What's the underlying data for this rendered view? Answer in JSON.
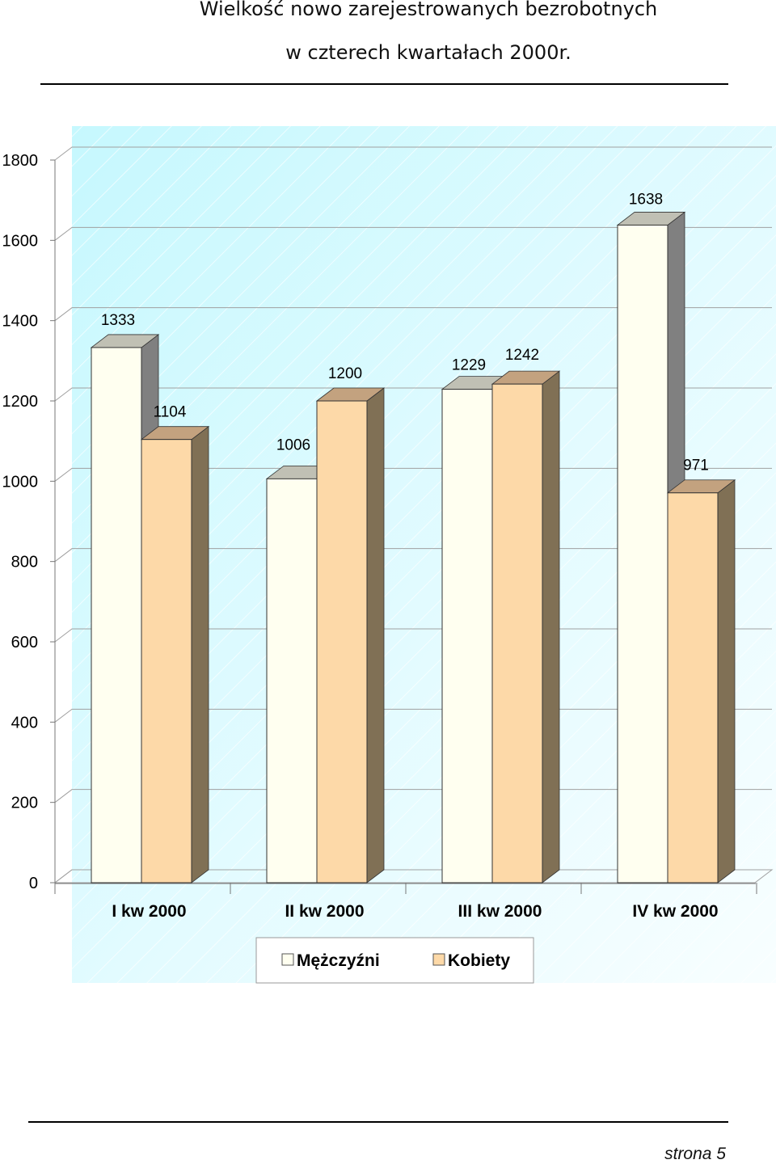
{
  "header": {
    "title_line1": "Wielkość nowo zarejestrowanych bezrobotnych",
    "title_line2": "w czterech kwartałach  2000r."
  },
  "footer": {
    "page_label": "strona  5"
  },
  "colors": {
    "men": "#fffff0",
    "women": "#fdd9a8",
    "wall": "#ccfaff"
  },
  "chart_data": {
    "type": "bar",
    "title": "Wielkość nowo zarejestrowanych bezrobotnych w czterech kwartałach  2000r.",
    "categories": [
      "I kw 2000",
      "II kw 2000",
      "III kw 2000",
      "IV kw 2000"
    ],
    "series": [
      {
        "name": "Mężczyźni",
        "values": [
          1333,
          1006,
          1229,
          1638
        ]
      },
      {
        "name": "Kobiety",
        "values": [
          1104,
          1200,
          1242,
          971
        ]
      }
    ],
    "ylim": [
      0,
      1800
    ],
    "yticks": [
      0,
      200,
      400,
      600,
      800,
      1000,
      1200,
      1400,
      1600,
      1800
    ],
    "grid": true,
    "three_d": true,
    "legend_position": "bottom"
  }
}
